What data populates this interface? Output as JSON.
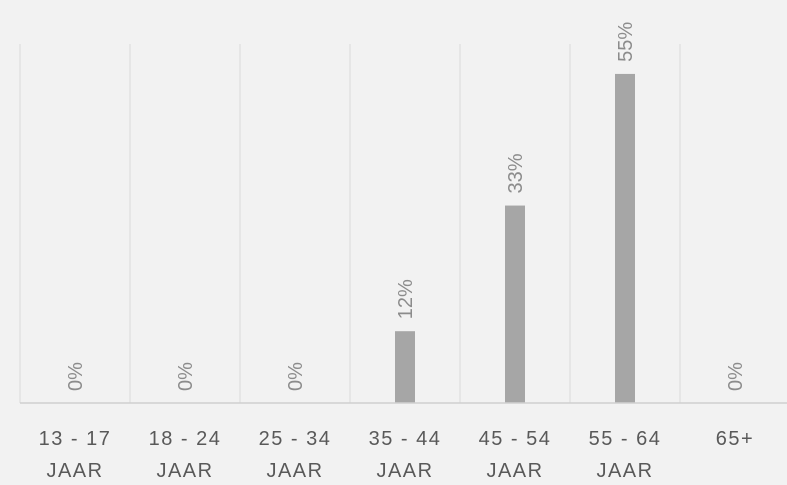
{
  "chart_data": {
    "type": "bar",
    "title": "",
    "xlabel": "",
    "ylabel": "",
    "categories": [
      [
        "13 - 17",
        "JAAR"
      ],
      [
        "18 - 24",
        "JAAR"
      ],
      [
        "25 - 34",
        "JAAR"
      ],
      [
        "35 - 44",
        "JAAR"
      ],
      [
        "45 - 54",
        "JAAR"
      ],
      [
        "55 - 64",
        "JAAR"
      ],
      [
        "65+",
        ""
      ]
    ],
    "values": [
      0,
      0,
      0,
      12,
      33,
      55,
      0
    ],
    "data_labels": [
      "0%",
      "0%",
      "0%",
      "12%",
      "33%",
      "55%",
      "0%"
    ],
    "ylim": [
      0,
      60
    ],
    "grid": "vertical",
    "legend": "none",
    "colors": {
      "bar": "#a6a6a6",
      "grid": "#d9d9d9",
      "axis": "#d0d0d0",
      "tick_text": "#595959",
      "label_text": "#8c8c8c",
      "background": "#f2f2f2"
    }
  }
}
